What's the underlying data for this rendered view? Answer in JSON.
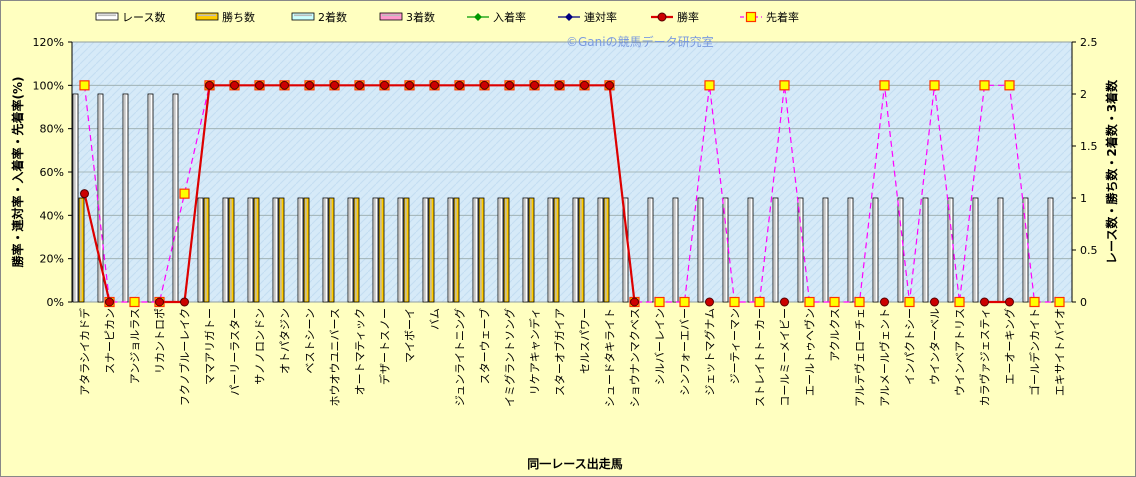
{
  "chart_data": {
    "type": "bar",
    "title": "",
    "watermark": "©Ganiの競馬データ研究室",
    "xlabel": "同一レース出走馬",
    "ylabel_left": "勝率・連対率・入着率・先着率(%)",
    "ylabel_right": "レース数・勝ち数・2着数・3着数",
    "ylim_left": [
      0,
      120
    ],
    "ylim_right": [
      0,
      2.5
    ],
    "left_ticks": [
      "0%",
      "20%",
      "40%",
      "60%",
      "80%",
      "100%",
      "120%"
    ],
    "right_ticks": [
      "0",
      "0.5",
      "1",
      "1.5",
      "2",
      "2.5"
    ],
    "grid": true,
    "legend_position": "top",
    "colors": {
      "plot_bg": "#d6eaf8",
      "chart_bg": "#ffffc0",
      "races": "#ffffff",
      "wins": "#ffcc00",
      "second": "#ccffff",
      "third": "#ff99cc",
      "place_rate": "#009900",
      "rentai_rate": "#000080",
      "win_rate": "#dd0000",
      "ahead_rate": "#ff00ff",
      "ahead_marker": "#ffff00"
    },
    "legend": [
      "レース数",
      "勝ち数",
      "2着数",
      "3着数",
      "入着率",
      "連対率",
      "勝率",
      "先着率"
    ],
    "categories": [
      "アタラシイカドデ",
      "スナーピカン",
      "アンジョルラス",
      "リカントロポ",
      "フクノブルーレイク",
      "ママアリガトー",
      "パーリーラスター",
      "サノノロンドン",
      "オトパタジン",
      "ベストシーン",
      "ホウオウユニバース",
      "オートマティック",
      "デザートスノー",
      "マイボーイ",
      "バム",
      "ジュンライトニング",
      "スターウェーブ",
      "イミグラントソング",
      "リケアキャンディ",
      "スターオブガイア",
      "セルスパワー",
      "シュードタキライト",
      "ショウナンマクベス",
      "シルバーレイン",
      "シンフォーエバー",
      "ジェットマグナム",
      "ジーティーマン",
      "ストレイトトーカー",
      "コールミーメイビー",
      "エールトゥヘヴン",
      "アクルクス",
      "アルテヴェローチェ",
      "アルメールヴェント",
      "インパクトシー",
      "ウインターベル",
      "ウインベアトリス",
      "カラヴァジェスティ",
      "エーオーキング",
      "ゴールデンカイト",
      "エキサイトバイオ"
    ],
    "series": [
      {
        "name": "レース数",
        "values": [
          2,
          2,
          2,
          2,
          2,
          1,
          1,
          1,
          1,
          1,
          1,
          1,
          1,
          1,
          1,
          1,
          1,
          1,
          1,
          1,
          1,
          1,
          1,
          1,
          1,
          1,
          1,
          1,
          1,
          1,
          1,
          1,
          1,
          1,
          1,
          1,
          1,
          1,
          1,
          1
        ]
      },
      {
        "name": "勝ち数",
        "values": [
          1,
          0,
          0,
          0,
          0,
          1,
          1,
          1,
          1,
          1,
          1,
          1,
          1,
          1,
          1,
          1,
          1,
          1,
          1,
          1,
          1,
          1,
          0,
          0,
          0,
          0,
          0,
          0,
          0,
          0,
          0,
          0,
          0,
          0,
          0,
          0,
          0,
          0,
          0,
          0
        ]
      },
      {
        "name": "2着数",
        "values": [
          0,
          0,
          0,
          0,
          0,
          0,
          0,
          0,
          0,
          0,
          0,
          0,
          0,
          0,
          0,
          0,
          0,
          0,
          0,
          0,
          0,
          0,
          0,
          0,
          0,
          0,
          0,
          0,
          0,
          0,
          0,
          0,
          0,
          0,
          0,
          0,
          0,
          0,
          0,
          0
        ]
      },
      {
        "name": "3着数",
        "values": [
          0,
          0,
          0,
          0,
          0,
          0,
          0,
          0,
          0,
          0,
          0,
          0,
          0,
          0,
          0,
          0,
          0,
          0,
          0,
          0,
          0,
          0,
          0,
          0,
          0,
          0,
          0,
          0,
          0,
          0,
          0,
          0,
          0,
          0,
          0,
          0,
          0,
          0,
          0,
          0
        ]
      },
      {
        "name": "入着率",
        "values": [
          50,
          0,
          null,
          0,
          0,
          100,
          100,
          100,
          100,
          100,
          100,
          100,
          100,
          100,
          100,
          100,
          100,
          100,
          100,
          100,
          100,
          100,
          0,
          null,
          null,
          0,
          null,
          null,
          0,
          null,
          null,
          null,
          0,
          null,
          0,
          null,
          0,
          0,
          null,
          null
        ]
      },
      {
        "name": "連対率",
        "values": [
          50,
          0,
          null,
          0,
          0,
          100,
          100,
          100,
          100,
          100,
          100,
          100,
          100,
          100,
          100,
          100,
          100,
          100,
          100,
          100,
          100,
          100,
          0,
          null,
          null,
          0,
          null,
          null,
          0,
          null,
          null,
          null,
          0,
          null,
          0,
          null,
          0,
          0,
          null,
          null
        ]
      },
      {
        "name": "勝率",
        "values": [
          50,
          0,
          null,
          0,
          0,
          100,
          100,
          100,
          100,
          100,
          100,
          100,
          100,
          100,
          100,
          100,
          100,
          100,
          100,
          100,
          100,
          100,
          0,
          null,
          null,
          0,
          null,
          null,
          0,
          null,
          null,
          null,
          0,
          null,
          0,
          null,
          0,
          0,
          null,
          null
        ]
      },
      {
        "name": "先着率",
        "values": [
          100,
          0,
          0,
          0,
          50,
          100,
          100,
          100,
          100,
          100,
          100,
          100,
          100,
          100,
          100,
          100,
          100,
          100,
          100,
          100,
          100,
          100,
          0,
          0,
          0,
          100,
          0,
          0,
          100,
          0,
          0,
          0,
          100,
          0,
          100,
          0,
          100,
          100,
          0,
          0
        ]
      }
    ]
  }
}
